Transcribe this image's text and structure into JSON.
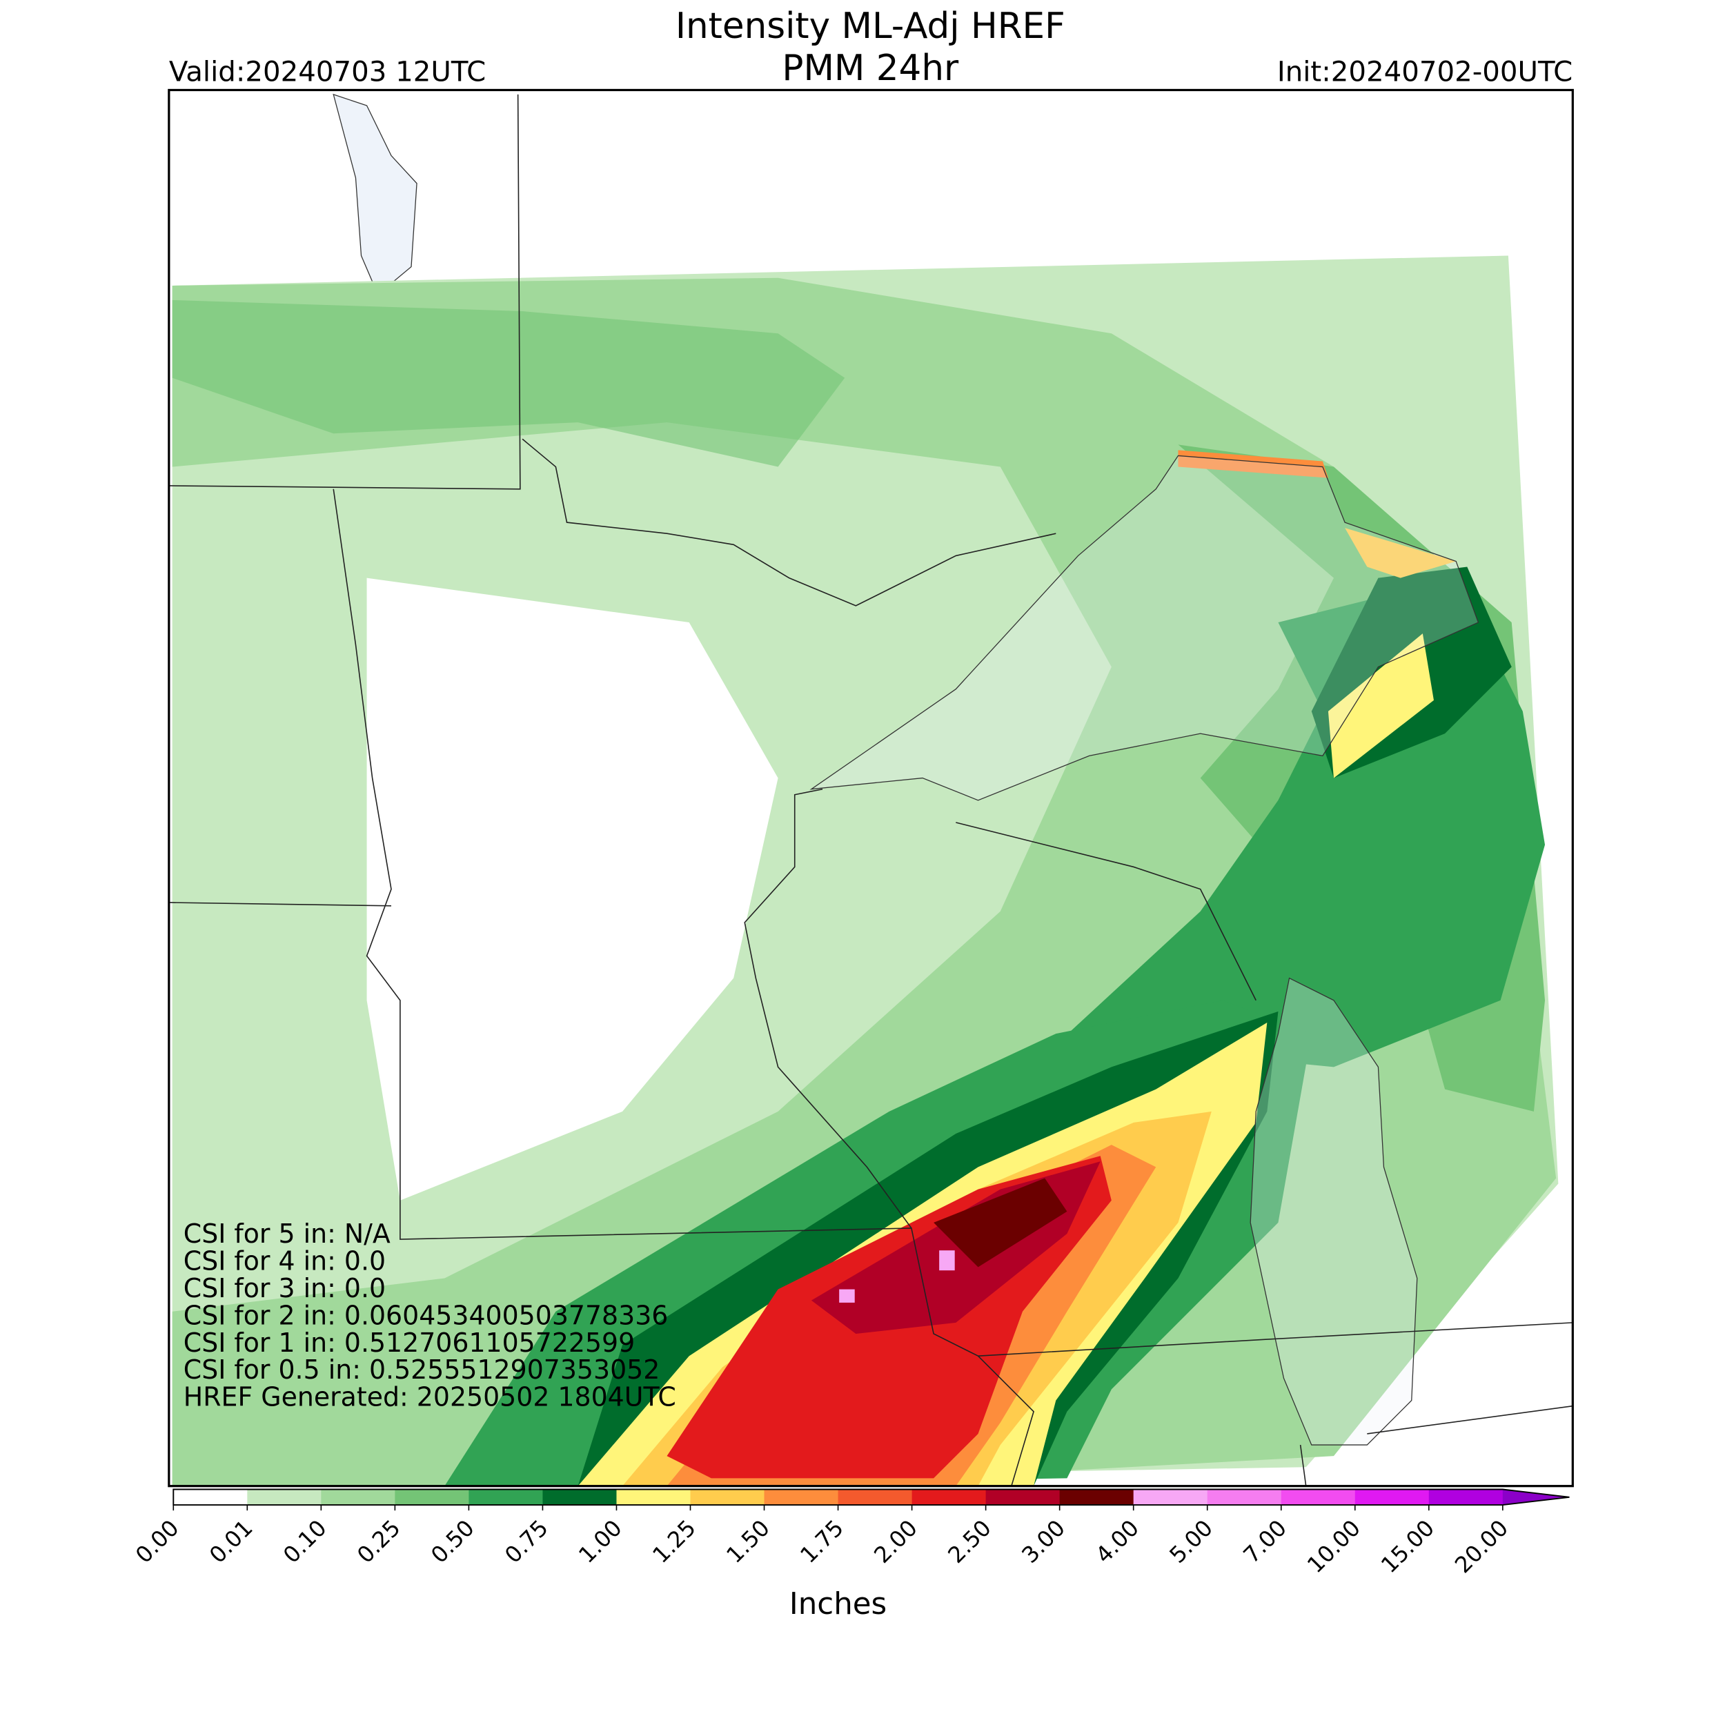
{
  "header": {
    "title_line1": "Intensity ML-Adj HREF",
    "title_line2": "PMM 24hr",
    "valid": "Valid:20240703 12UTC",
    "init": "Init:20240702-00UTC"
  },
  "stats": [
    "CSI for 5 in: N/A",
    "CSI for 4 in: 0.0",
    "CSI for 3 in: 0.0",
    "CSI for 2 in: 0.060453400503778336",
    "CSI for 1 in: 0.5127061105722599",
    "CSI for 0.5 in: 0.5255512907353052",
    "HREF Generated: 20250502 1804UTC"
  ],
  "colorbar": {
    "label": "Inches",
    "ticks": [
      "0.00",
      "0.01",
      "0.10",
      "0.25",
      "0.50",
      "0.75",
      "1.00",
      "1.25",
      "1.50",
      "1.75",
      "2.00",
      "2.50",
      "3.00",
      "4.00",
      "5.00",
      "7.00",
      "10.00",
      "15.00",
      "20.00"
    ],
    "colors": [
      "#ffffff",
      "#c7e9c0",
      "#a1d99b",
      "#74c476",
      "#31a354",
      "#006d2c",
      "#fff57a",
      "#ffcc4d",
      "#fd8d3c",
      "#f45a2d",
      "#e31a1c",
      "#b10026",
      "#6b0000",
      "#f7a8f5",
      "#f57df0",
      "#f24cf0",
      "#e019f2",
      "#b000e0"
    ],
    "extend_color": "#8b00c8"
  }
}
